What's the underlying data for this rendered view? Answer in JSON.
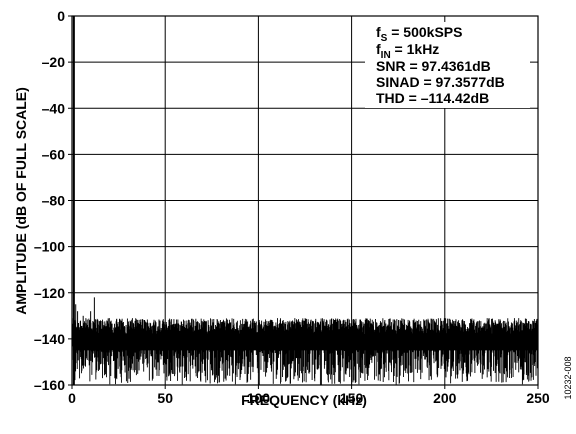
{
  "chart_data": {
    "type": "line",
    "xlabel": "FREQUENCY (kHz)",
    "ylabel": "AMPLITUDE (dB OF FULL SCALE)",
    "xlim": [
      0,
      250
    ],
    "ylim": [
      -160,
      0
    ],
    "xticks": [
      0,
      50,
      100,
      150,
      200,
      250
    ],
    "yticks": [
      0,
      -20,
      -40,
      -60,
      -80,
      -100,
      -120,
      -140,
      -160
    ],
    "grid": true,
    "annotations": {
      "fs": {
        "main": "f",
        "sub": "S",
        "rest": " = 500kSPS"
      },
      "fin": {
        "main": "f",
        "sub": "IN",
        "rest": " = 1kHz"
      },
      "snr": "SNR = 97.4361dB",
      "sinad": "SINAD = 97.3577dB",
      "thd": "THD = –114.42dB"
    },
    "series": [
      {
        "description_values": {
          "fundamental": {
            "x": 1,
            "y": 0
          },
          "spurs": [
            {
              "x": 2,
              "y": -125
            },
            {
              "x": 3,
              "y": -128
            },
            {
              "x": 6,
              "y": -130
            },
            {
              "x": 10,
              "y": -128
            },
            {
              "x": 12,
              "y": -122
            },
            {
              "x": 20,
              "y": -131
            }
          ],
          "noise_floor_typical_db": -141,
          "noise_upper_db": -131,
          "noise_lower_db": -156
        }
      }
    ]
  },
  "figure_id": "10232-008"
}
